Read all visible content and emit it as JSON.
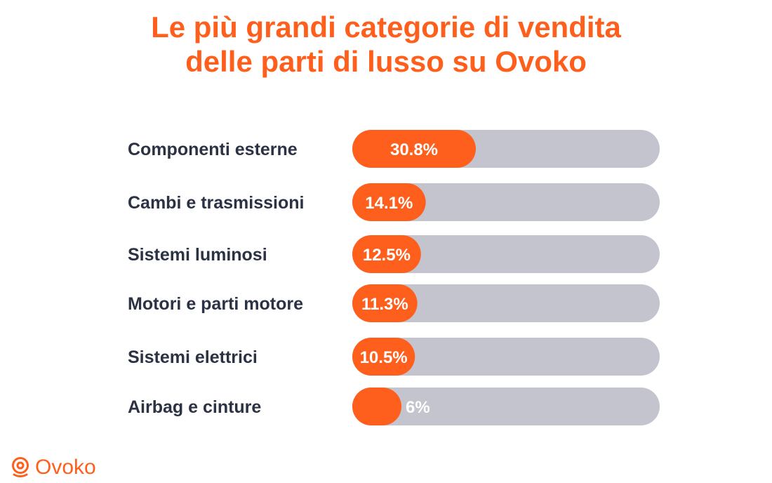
{
  "chart_data": {
    "type": "bar",
    "orientation": "horizontal",
    "title": "Le più grandi categorie di vendita delle parti di lusso su Ovoko",
    "title_lines": [
      "Le più grandi categorie di vendita",
      "delle parti di lusso su Ovoko"
    ],
    "categories": [
      "Componenti esterne",
      "Cambi e trasmissioni",
      "Sistemi luminosi",
      "Motori e parti motore",
      "Sistemi elettrici",
      "Airbag e cinture"
    ],
    "values": [
      30.8,
      14.1,
      12.5,
      11.3,
      10.5,
      6
    ],
    "value_labels": [
      "30.8%",
      "14.1%",
      "12.5%",
      "11.3%",
      "10.5%",
      "6%"
    ],
    "unit": "%",
    "bar_color": "#ff5f1c",
    "track_color": "#c4c4cf",
    "label_color": "#2b3244",
    "legend": "none",
    "grid": false
  },
  "brand": {
    "name": "Ovoko",
    "color": "#ff5f1c",
    "icon": "ovoko-logo-icon"
  }
}
